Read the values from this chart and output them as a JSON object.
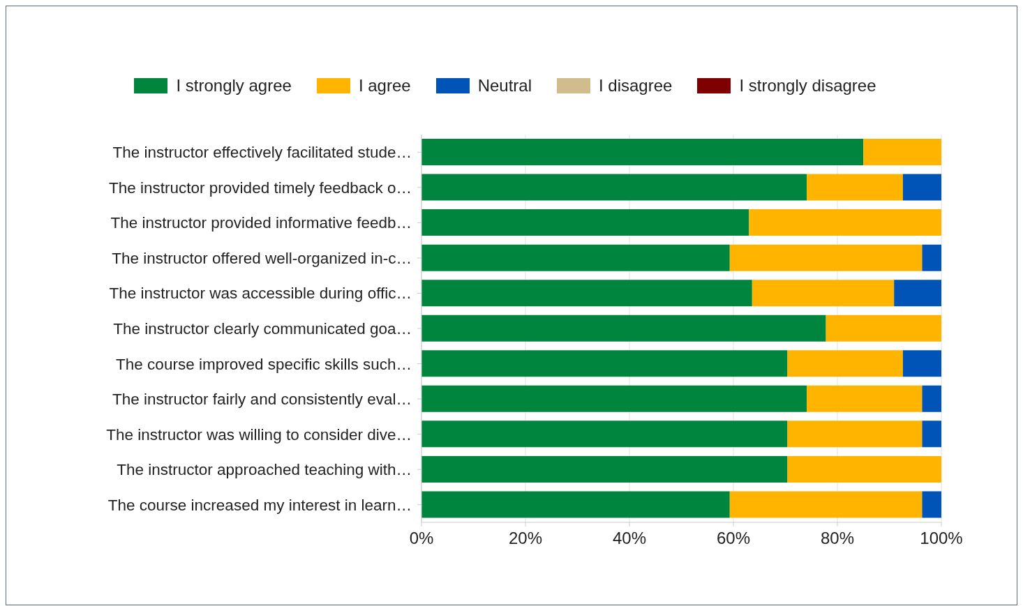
{
  "chart_data": {
    "type": "bar",
    "orientation": "horizontal",
    "stacked": true,
    "categories": [
      "The instructor effectively facilitated stude…",
      "The instructor provided timely feedback o…",
      "The instructor provided informative feedb…",
      "The instructor offered well-organized in-c…",
      "The instructor was accessible during offic…",
      "The instructor clearly communicated goa…",
      "The course improved specific skills such…",
      "The instructor fairly and consistently eval…",
      "The instructor was willing to consider dive…",
      "The instructor approached teaching with…",
      "The course increased my interest in learn…"
    ],
    "series": [
      {
        "name": "I strongly agree",
        "color": "#00853f",
        "values": [
          85.0,
          74.1,
          63.0,
          59.3,
          63.6,
          77.8,
          70.4,
          74.1,
          70.4,
          70.4,
          59.3
        ]
      },
      {
        "name": "I agree",
        "color": "#ffb500",
        "values": [
          15.0,
          18.5,
          37.0,
          37.0,
          27.3,
          22.2,
          22.2,
          22.2,
          25.9,
          29.6,
          37.0
        ]
      },
      {
        "name": "Neutral",
        "color": "#0054b8",
        "values": [
          0,
          7.4,
          0,
          3.7,
          9.1,
          0,
          7.4,
          3.7,
          3.7,
          0,
          3.7
        ]
      },
      {
        "name": "I disagree",
        "color": "#d0bc8c",
        "values": [
          0,
          0,
          0,
          0,
          0,
          0,
          0,
          0,
          0,
          0,
          0
        ]
      },
      {
        "name": "I strongly disagree",
        "color": "#7f0000",
        "values": [
          0,
          0,
          0,
          0,
          0,
          0,
          0,
          0,
          0,
          0,
          0
        ]
      }
    ],
    "xlim": [
      0,
      100
    ],
    "xticks": [
      {
        "value": 0,
        "label": "0%"
      },
      {
        "value": 20,
        "label": "20%"
      },
      {
        "value": 40,
        "label": "40%"
      },
      {
        "value": 60,
        "label": "60%"
      },
      {
        "value": 80,
        "label": "80%"
      },
      {
        "value": 100,
        "label": "100%"
      }
    ],
    "grid": "x",
    "legend": "top"
  }
}
